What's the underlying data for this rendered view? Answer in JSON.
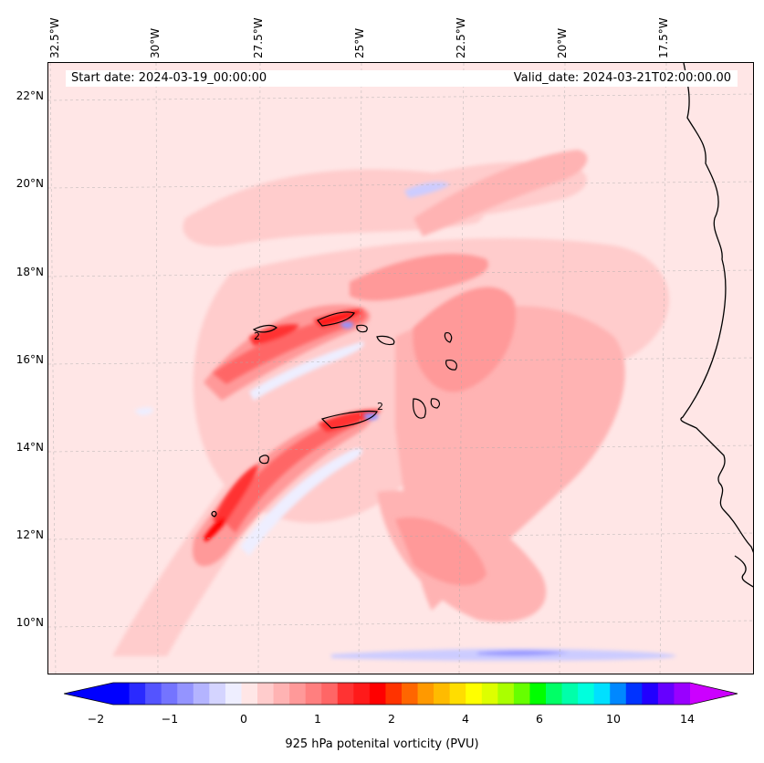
{
  "map": {
    "start_date": "Start date: 2024-03-19_00:00:00",
    "valid_date": "Valid_date: 2024-03-21T02:00:00.00",
    "lon_labels": [
      "32.5°W",
      "30°W",
      "27.5°W",
      "25°W",
      "22.5°W",
      "20°W",
      "17.5°W"
    ],
    "lat_labels": [
      "22°N",
      "20°N",
      "18°N",
      "16°N",
      "14°N",
      "12°N",
      "10°N"
    ],
    "contour_label": "2",
    "field": "925 hPa potenital vorticity (PVU)"
  },
  "colorbar": {
    "label": "925 hPa potenital vorticity (PVU)",
    "tick_labels": [
      "−2",
      "−1",
      "0",
      "1",
      "2",
      "4",
      "6",
      "10",
      "14"
    ],
    "colors": [
      "#0000ff",
      "#2a2aff",
      "#5454ff",
      "#7474ff",
      "#9494ff",
      "#b4b4ff",
      "#d4d4ff",
      "#eeeeff",
      "#ffe6e6",
      "#ffcccc",
      "#ffb3b3",
      "#ff9999",
      "#ff7f7f",
      "#ff6666",
      "#ff3333",
      "#ff1a1a",
      "#ff0000",
      "#ff3300",
      "#ff6600",
      "#ff9900",
      "#ffbb00",
      "#ffdd00",
      "#ffff00",
      "#ddff00",
      "#aaff00",
      "#66ff00",
      "#00ff00",
      "#00ff66",
      "#00ffaa",
      "#00ffdd",
      "#00e0ff",
      "#0088ff",
      "#0033ff",
      "#2200ff",
      "#6600ff",
      "#9900ff"
    ],
    "extend_low_color": "#0000ff",
    "extend_high_color": "#cc00ff"
  }
}
